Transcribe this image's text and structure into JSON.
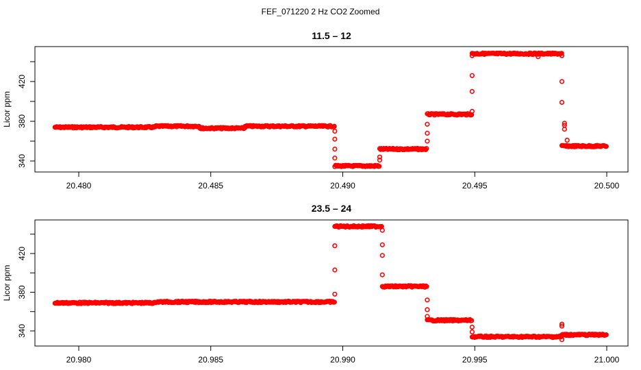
{
  "figure": {
    "title": "FEF_071220  2 Hz CO2 Zoomed",
    "point_color": "#ff0000"
  },
  "chart_data": [
    {
      "type": "scatter",
      "title": "11.5 – 12",
      "xlabel": "",
      "ylabel": "Licor ppm",
      "xlim": [
        20.4791,
        20.5004
      ],
      "ylim": [
        330,
        451
      ],
      "xticks": [
        "20.480",
        "20.485",
        "20.490",
        "20.495",
        "20.500"
      ],
      "xtick_values": [
        20.48,
        20.485,
        20.49,
        20.495,
        20.5
      ],
      "yticks": [
        "340",
        "380",
        "420"
      ],
      "ytick_values": [
        340,
        360,
        380,
        400,
        420,
        440
      ],
      "grid": false,
      "marker": "open-circle",
      "segments": [
        {
          "x_start": 20.4791,
          "x_end": 20.4829,
          "y": 374
        },
        {
          "x_start": 20.4829,
          "x_end": 20.4846,
          "y": 375
        },
        {
          "x_start": 20.4846,
          "x_end": 20.4863,
          "y": 373
        },
        {
          "x_start": 20.4863,
          "x_end": 20.488,
          "y": 375
        },
        {
          "x_start": 20.488,
          "x_end": 20.4897,
          "y": 375
        },
        {
          "x_start": 20.4897,
          "x_end": 20.4914,
          "y": 335
        },
        {
          "x_start": 20.4914,
          "x_end": 20.4932,
          "y": 352
        },
        {
          "x_start": 20.4932,
          "x_end": 20.4949,
          "y": 387
        },
        {
          "x_start": 20.4949,
          "x_end": 20.4983,
          "y": 448
        },
        {
          "x_start": 20.4983,
          "x_end": 20.5,
          "y": 355
        }
      ],
      "transition_points": [
        {
          "x": 20.4897,
          "y": 370
        },
        {
          "x": 20.4897,
          "y": 362
        },
        {
          "x": 20.4897,
          "y": 352
        },
        {
          "x": 20.4897,
          "y": 343
        },
        {
          "x": 20.4914,
          "y": 341
        },
        {
          "x": 20.4914,
          "y": 344
        },
        {
          "x": 20.4932,
          "y": 360
        },
        {
          "x": 20.4932,
          "y": 368
        },
        {
          "x": 20.4932,
          "y": 377
        },
        {
          "x": 20.4949,
          "y": 390
        },
        {
          "x": 20.4949,
          "y": 410
        },
        {
          "x": 20.4949,
          "y": 426
        },
        {
          "x": 20.4949,
          "y": 446
        },
        {
          "x": 20.4974,
          "y": 445
        },
        {
          "x": 20.4983,
          "y": 446
        },
        {
          "x": 20.4983,
          "y": 420
        },
        {
          "x": 20.4983,
          "y": 399
        },
        {
          "x": 20.4984,
          "y": 378
        },
        {
          "x": 20.4984,
          "y": 376
        },
        {
          "x": 20.4984,
          "y": 372
        },
        {
          "x": 20.4985,
          "y": 361
        }
      ]
    },
    {
      "type": "scatter",
      "title": "23.5 – 24",
      "xlabel": "",
      "ylabel": "Licor ppm",
      "xlim": [
        20.9791,
        21.0004
      ],
      "ylim": [
        325,
        452
      ],
      "xticks": [
        "20.980",
        "20.985",
        "20.990",
        "20.995",
        "21.000"
      ],
      "xtick_values": [
        20.98,
        20.985,
        20.99,
        20.995,
        21.0
      ],
      "yticks": [
        "340",
        "380",
        "420"
      ],
      "ytick_values": [
        340,
        360,
        380,
        400,
        420,
        440
      ],
      "grid": false,
      "marker": "open-circle",
      "segments": [
        {
          "x_start": 20.9791,
          "x_end": 20.9829,
          "y": 369
        },
        {
          "x_start": 20.9829,
          "x_end": 20.9897,
          "y": 370
        },
        {
          "x_start": 20.9897,
          "x_end": 20.9915,
          "y": 448
        },
        {
          "x_start": 20.9915,
          "x_end": 20.9932,
          "y": 386
        },
        {
          "x_start": 20.9932,
          "x_end": 20.9949,
          "y": 351
        },
        {
          "x_start": 20.9949,
          "x_end": 20.9983,
          "y": 334
        },
        {
          "x_start": 20.9983,
          "x_end": 21.0,
          "y": 336
        }
      ],
      "transition_points": [
        {
          "x": 20.9897,
          "y": 378
        },
        {
          "x": 20.9897,
          "y": 403
        },
        {
          "x": 20.9897,
          "y": 428
        },
        {
          "x": 20.9915,
          "y": 444
        },
        {
          "x": 20.9915,
          "y": 429
        },
        {
          "x": 20.9915,
          "y": 418
        },
        {
          "x": 20.9915,
          "y": 398
        },
        {
          "x": 20.9932,
          "y": 372
        },
        {
          "x": 20.9932,
          "y": 362
        },
        {
          "x": 20.9932,
          "y": 355
        },
        {
          "x": 20.9949,
          "y": 344
        },
        {
          "x": 20.9949,
          "y": 339
        },
        {
          "x": 20.9983,
          "y": 347
        },
        {
          "x": 20.9983,
          "y": 345
        },
        {
          "x": 20.9983,
          "y": 331
        }
      ]
    }
  ]
}
